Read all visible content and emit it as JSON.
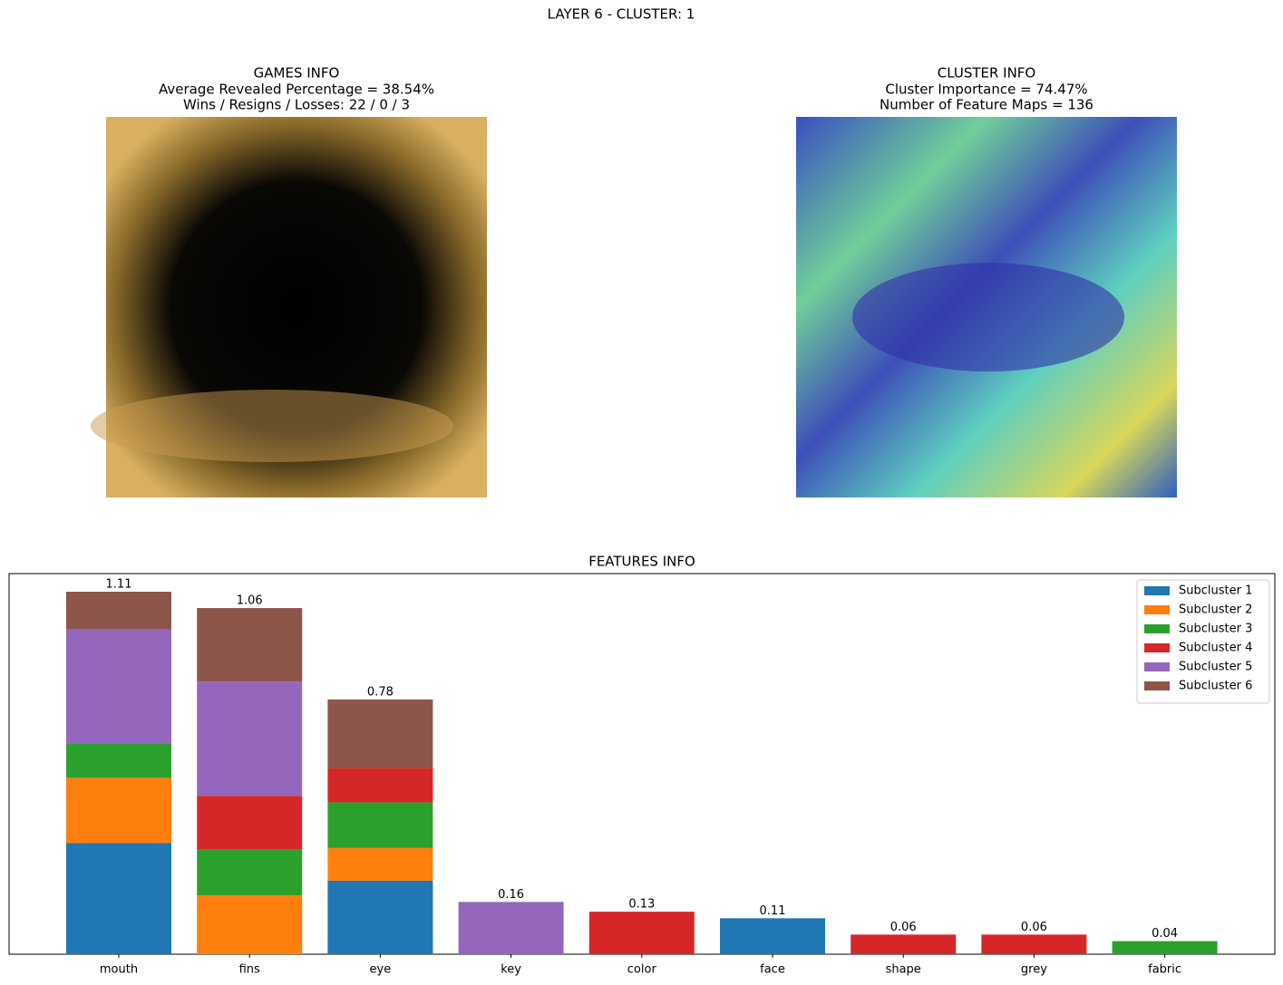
{
  "title": "LAYER 6 - CLUSTER: 1",
  "games_info": {
    "title": "GAMES INFO",
    "lines": [
      "Average Revealed Percentage = 38.54%",
      "Wins / Resigns / Losses: 22 / 0 / 3"
    ]
  },
  "cluster_info": {
    "title": "CLUSTER INFO",
    "lines": [
      "Cluster Importance = 74.47%",
      "Number of Feature Maps = 136"
    ]
  },
  "chart_data": {
    "type": "stacked-bar",
    "title": "FEATURES INFO",
    "categories": [
      "mouth",
      "fins",
      "eye",
      "key",
      "color",
      "face",
      "shape",
      "grey",
      "fabric"
    ],
    "series": [
      {
        "name": "Subcluster 1",
        "color": "#1f77b4",
        "values": [
          0.34,
          0,
          0.225,
          0,
          0,
          0.11,
          0,
          0,
          0
        ]
      },
      {
        "name": "Subcluster 2",
        "color": "#ff7f0e",
        "values": [
          0.2,
          0.18,
          0.1,
          0,
          0,
          0,
          0,
          0,
          0
        ]
      },
      {
        "name": "Subcluster 3",
        "color": "#2ca02c",
        "values": [
          0.105,
          0.14,
          0.14,
          0,
          0,
          0,
          0,
          0,
          0.04
        ]
      },
      {
        "name": "Subcluster 4",
        "color": "#d62728",
        "values": [
          0,
          0.165,
          0.105,
          0,
          0.13,
          0,
          0.06,
          0.06,
          0
        ]
      },
      {
        "name": "Subcluster 5",
        "color": "#9467bd",
        "values": [
          0.35,
          0.35,
          0,
          0.16,
          0,
          0,
          0,
          0,
          0
        ]
      },
      {
        "name": "Subcluster 6",
        "color": "#8c564b",
        "values": [
          0.115,
          0.225,
          0.21,
          0,
          0,
          0,
          0,
          0,
          0
        ]
      }
    ],
    "totals": [
      1.11,
      1.06,
      0.78,
      0.16,
      0.13,
      0.11,
      0.06,
      0.06,
      0.04
    ],
    "ylim": [
      0,
      1.1655
    ],
    "legend": "upper right"
  }
}
